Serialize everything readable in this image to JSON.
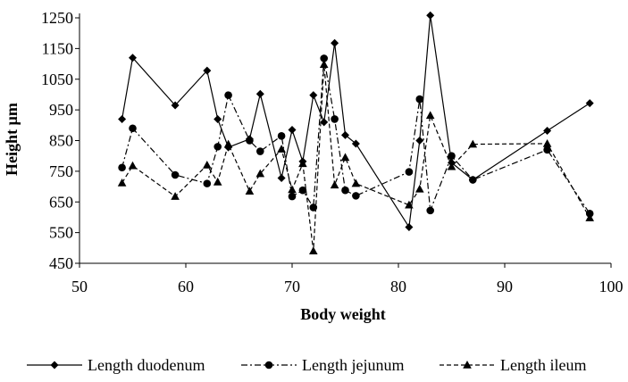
{
  "chart_data": {
    "type": "line",
    "title": "",
    "xlabel": "Body weight",
    "ylabel": "Height  µm",
    "xlim": [
      50,
      100
    ],
    "ylim": [
      450,
      1250
    ],
    "xticks": [
      50,
      60,
      70,
      80,
      90,
      100
    ],
    "yticks": [
      450,
      550,
      650,
      750,
      850,
      950,
      1050,
      1150,
      1250
    ],
    "grid": false,
    "legend_position": "bottom",
    "series": [
      {
        "name": "Length duodenum",
        "marker": "diamond",
        "dash": "solid",
        "x": [
          54,
          55,
          59,
          62,
          63,
          64,
          66,
          67,
          69,
          70,
          71,
          72,
          73,
          74,
          75,
          76,
          81,
          82,
          83,
          85,
          87,
          94,
          98
        ],
        "y": [
          920,
          1120,
          965,
          1078,
          920,
          828,
          855,
          1002,
          728,
          885,
          782,
          998,
          910,
          1168,
          868,
          840,
          568,
          850,
          1258,
          778,
          722,
          882,
          972
        ]
      },
      {
        "name": "Length jejunum",
        "marker": "circle",
        "dash": "dashdot",
        "x": [
          54,
          55,
          59,
          62,
          63,
          64,
          66,
          67,
          69,
          70,
          71,
          72,
          73,
          74,
          75,
          76,
          81,
          82,
          83,
          85,
          87,
          94,
          98
        ],
        "y": [
          762,
          890,
          738,
          710,
          830,
          998,
          850,
          815,
          865,
          668,
          688,
          632,
          1118,
          920,
          688,
          670,
          748,
          985,
          622,
          800,
          722,
          820,
          612
        ]
      },
      {
        "name": "Length ileum",
        "marker": "triangle",
        "dash": "dashed",
        "x": [
          54,
          55,
          59,
          62,
          63,
          64,
          66,
          67,
          69,
          70,
          71,
          72,
          73,
          74,
          75,
          76,
          81,
          82,
          83,
          85,
          87,
          94,
          98
        ],
        "y": [
          712,
          768,
          668,
          770,
          715,
          838,
          685,
          742,
          822,
          690,
          775,
          490,
          1098,
          705,
          795,
          710,
          640,
          692,
          932,
          765,
          838,
          840,
          598
        ]
      }
    ]
  }
}
